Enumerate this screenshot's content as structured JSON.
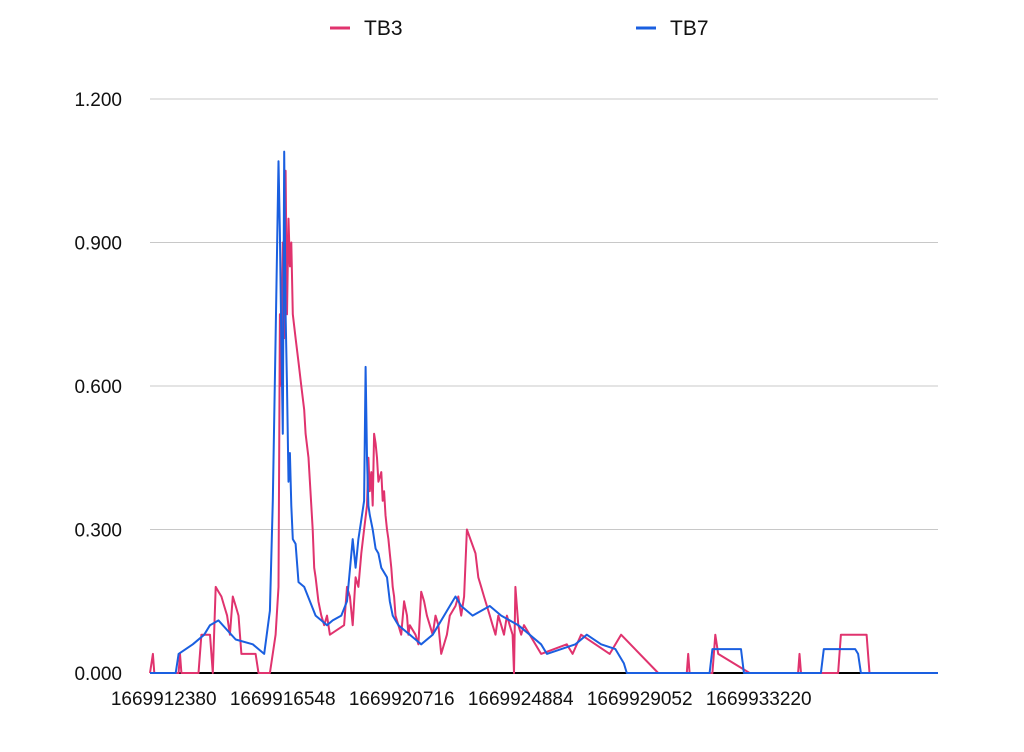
{
  "chart_data": {
    "type": "line",
    "title": "",
    "xlabel": "",
    "ylabel": "",
    "xlim": [
      1669911900,
      1669939500
    ],
    "ylim": [
      0,
      1.2
    ],
    "grid": true,
    "legend_position": "top",
    "y_ticks": [
      "0.000",
      "0.300",
      "0.600",
      "0.900",
      "1.200"
    ],
    "y_tick_values": [
      0,
      0.3,
      0.6,
      0.9,
      1.2
    ],
    "x_ticks": [
      "1669912380",
      "1669916548",
      "1669920716",
      "1669924884",
      "1669929052",
      "1669933220"
    ],
    "x_tick_values": [
      1669912380,
      1669916548,
      1669920716,
      1669924884,
      1669929052,
      1669933220
    ],
    "series": [
      {
        "name": "TB3",
        "color": "#e0336e",
        "points": [
          [
            1669911900,
            0.0
          ],
          [
            1669912000,
            0.04
          ],
          [
            1669912050,
            0.0
          ],
          [
            1669912900,
            0.0
          ],
          [
            1669912950,
            0.04
          ],
          [
            1669913000,
            0.0
          ],
          [
            1669913600,
            0.0
          ],
          [
            1669913700,
            0.08
          ],
          [
            1669914000,
            0.08
          ],
          [
            1669914100,
            0.0
          ],
          [
            1669914200,
            0.18
          ],
          [
            1669914300,
            0.17
          ],
          [
            1669914400,
            0.16
          ],
          [
            1669914500,
            0.14
          ],
          [
            1669914600,
            0.12
          ],
          [
            1669914700,
            0.08
          ],
          [
            1669914800,
            0.16
          ],
          [
            1669914900,
            0.14
          ],
          [
            1669915000,
            0.12
          ],
          [
            1669915100,
            0.04
          ],
          [
            1669915600,
            0.04
          ],
          [
            1669915700,
            0.0
          ],
          [
            1669916100,
            0.0
          ],
          [
            1669916300,
            0.08
          ],
          [
            1669916400,
            0.18
          ],
          [
            1669916450,
            0.75
          ],
          [
            1669916500,
            0.6
          ],
          [
            1669916550,
            0.9
          ],
          [
            1669916600,
            0.7
          ],
          [
            1669916650,
            1.05
          ],
          [
            1669916700,
            0.75
          ],
          [
            1669916750,
            0.95
          ],
          [
            1669916800,
            0.85
          ],
          [
            1669916850,
            0.9
          ],
          [
            1669916900,
            0.75
          ],
          [
            1669917000,
            0.7
          ],
          [
            1669917100,
            0.65
          ],
          [
            1669917200,
            0.6
          ],
          [
            1669917300,
            0.55
          ],
          [
            1669917350,
            0.5
          ],
          [
            1669917450,
            0.45
          ],
          [
            1669917500,
            0.4
          ],
          [
            1669917550,
            0.35
          ],
          [
            1669917600,
            0.3
          ],
          [
            1669917650,
            0.22
          ],
          [
            1669917700,
            0.2
          ],
          [
            1669917800,
            0.15
          ],
          [
            1669917900,
            0.12
          ],
          [
            1669918000,
            0.1
          ],
          [
            1669918100,
            0.12
          ],
          [
            1669918200,
            0.08
          ],
          [
            1669918700,
            0.1
          ],
          [
            1669918800,
            0.18
          ],
          [
            1669918900,
            0.16
          ],
          [
            1669919000,
            0.1
          ],
          [
            1669919100,
            0.2
          ],
          [
            1669919200,
            0.18
          ],
          [
            1669919300,
            0.25
          ],
          [
            1669919400,
            0.3
          ],
          [
            1669919500,
            0.35
          ],
          [
            1669919550,
            0.45
          ],
          [
            1669919600,
            0.38
          ],
          [
            1669919650,
            0.42
          ],
          [
            1669919700,
            0.35
          ],
          [
            1669919750,
            0.5
          ],
          [
            1669919800,
            0.48
          ],
          [
            1669919850,
            0.45
          ],
          [
            1669919900,
            0.4
          ],
          [
            1669920000,
            0.42
          ],
          [
            1669920050,
            0.36
          ],
          [
            1669920100,
            0.38
          ],
          [
            1669920150,
            0.33
          ],
          [
            1669920200,
            0.3
          ],
          [
            1669920250,
            0.28
          ],
          [
            1669920300,
            0.25
          ],
          [
            1669920350,
            0.22
          ],
          [
            1669920400,
            0.18
          ],
          [
            1669920450,
            0.16
          ],
          [
            1669920500,
            0.12
          ],
          [
            1669920600,
            0.1
          ],
          [
            1669920700,
            0.08
          ],
          [
            1669920800,
            0.15
          ],
          [
            1669920900,
            0.12
          ],
          [
            1669920950,
            0.08
          ],
          [
            1669921000,
            0.1
          ],
          [
            1669921200,
            0.08
          ],
          [
            1669921300,
            0.06
          ],
          [
            1669921400,
            0.17
          ],
          [
            1669921500,
            0.15
          ],
          [
            1669921600,
            0.12
          ],
          [
            1669921700,
            0.1
          ],
          [
            1669921800,
            0.08
          ],
          [
            1669921900,
            0.12
          ],
          [
            1669922000,
            0.1
          ],
          [
            1669922100,
            0.04
          ],
          [
            1669922300,
            0.08
          ],
          [
            1669922400,
            0.12
          ],
          [
            1669922600,
            0.14
          ],
          [
            1669922700,
            0.16
          ],
          [
            1669922800,
            0.12
          ],
          [
            1669922900,
            0.16
          ],
          [
            1669923000,
            0.3
          ],
          [
            1669923300,
            0.25
          ],
          [
            1669923400,
            0.2
          ],
          [
            1669923500,
            0.18
          ],
          [
            1669923600,
            0.16
          ],
          [
            1669923700,
            0.14
          ],
          [
            1669923800,
            0.12
          ],
          [
            1669923900,
            0.1
          ],
          [
            1669924000,
            0.08
          ],
          [
            1669924100,
            0.12
          ],
          [
            1669924200,
            0.1
          ],
          [
            1669924300,
            0.08
          ],
          [
            1669924400,
            0.12
          ],
          [
            1669924500,
            0.1
          ],
          [
            1669924600,
            0.08
          ],
          [
            1669924650,
            0.0
          ],
          [
            1669924700,
            0.18
          ],
          [
            1669924800,
            0.1
          ],
          [
            1669924900,
            0.08
          ],
          [
            1669925000,
            0.1
          ],
          [
            1669925200,
            0.08
          ],
          [
            1669925600,
            0.04
          ],
          [
            1669926500,
            0.06
          ],
          [
            1669926700,
            0.04
          ],
          [
            1669927000,
            0.08
          ],
          [
            1669928000,
            0.04
          ],
          [
            1669928400,
            0.08
          ],
          [
            1669929700,
            0.0
          ],
          [
            1669930700,
            0.0
          ],
          [
            1669930750,
            0.04
          ],
          [
            1669930800,
            0.0
          ],
          [
            1669931600,
            0.0
          ],
          [
            1669931700,
            0.08
          ],
          [
            1669931800,
            0.04
          ],
          [
            1669932900,
            0.0
          ],
          [
            1669934600,
            0.0
          ],
          [
            1669934650,
            0.04
          ],
          [
            1669934700,
            0.0
          ],
          [
            1669936000,
            0.0
          ],
          [
            1669936100,
            0.08
          ],
          [
            1669937000,
            0.08
          ],
          [
            1669937100,
            0.0
          ],
          [
            1669939500,
            0.0
          ]
        ]
      },
      {
        "name": "TB7",
        "color": "#1a5fe0",
        "points": [
          [
            1669911900,
            0.0
          ],
          [
            1669912800,
            0.0
          ],
          [
            1669912900,
            0.04
          ],
          [
            1669913400,
            0.06
          ],
          [
            1669913800,
            0.08
          ],
          [
            1669914000,
            0.1
          ],
          [
            1669914300,
            0.11
          ],
          [
            1669914600,
            0.09
          ],
          [
            1669914900,
            0.07
          ],
          [
            1669915500,
            0.06
          ],
          [
            1669915700,
            0.05
          ],
          [
            1669915900,
            0.04
          ],
          [
            1669916100,
            0.13
          ],
          [
            1669916200,
            0.36
          ],
          [
            1669916300,
            0.7
          ],
          [
            1669916400,
            1.07
          ],
          [
            1669916450,
            0.92
          ],
          [
            1669916500,
            0.7
          ],
          [
            1669916550,
            0.5
          ],
          [
            1669916600,
            1.09
          ],
          [
            1669916650,
            0.75
          ],
          [
            1669916700,
            0.6
          ],
          [
            1669916750,
            0.4
          ],
          [
            1669916800,
            0.46
          ],
          [
            1669916850,
            0.35
          ],
          [
            1669916900,
            0.28
          ],
          [
            1669917000,
            0.27
          ],
          [
            1669917100,
            0.19
          ],
          [
            1669917300,
            0.18
          ],
          [
            1669917500,
            0.15
          ],
          [
            1669917700,
            0.12
          ],
          [
            1669917900,
            0.11
          ],
          [
            1669918100,
            0.1
          ],
          [
            1669918300,
            0.11
          ],
          [
            1669918600,
            0.12
          ],
          [
            1669918800,
            0.15
          ],
          [
            1669919000,
            0.28
          ],
          [
            1669919100,
            0.22
          ],
          [
            1669919200,
            0.28
          ],
          [
            1669919300,
            0.32
          ],
          [
            1669919400,
            0.36
          ],
          [
            1669919450,
            0.64
          ],
          [
            1669919500,
            0.45
          ],
          [
            1669919550,
            0.35
          ],
          [
            1669919600,
            0.33
          ],
          [
            1669919700,
            0.3
          ],
          [
            1669919800,
            0.26
          ],
          [
            1669919900,
            0.25
          ],
          [
            1669920000,
            0.22
          ],
          [
            1669920200,
            0.2
          ],
          [
            1669920300,
            0.15
          ],
          [
            1669920400,
            0.12
          ],
          [
            1669920600,
            0.1
          ],
          [
            1669920800,
            0.09
          ],
          [
            1669921000,
            0.08
          ],
          [
            1669921200,
            0.07
          ],
          [
            1669921400,
            0.06
          ],
          [
            1669921800,
            0.08
          ],
          [
            1669922000,
            0.1
          ],
          [
            1669922200,
            0.12
          ],
          [
            1669922400,
            0.14
          ],
          [
            1669922600,
            0.16
          ],
          [
            1669922800,
            0.14
          ],
          [
            1669923200,
            0.12
          ],
          [
            1669923800,
            0.14
          ],
          [
            1669924200,
            0.12
          ],
          [
            1669924800,
            0.1
          ],
          [
            1669925200,
            0.08
          ],
          [
            1669925600,
            0.06
          ],
          [
            1669925800,
            0.04
          ],
          [
            1669926800,
            0.06
          ],
          [
            1669927200,
            0.08
          ],
          [
            1669927700,
            0.06
          ],
          [
            1669928200,
            0.05
          ],
          [
            1669928500,
            0.02
          ],
          [
            1669928600,
            0.0
          ],
          [
            1669931500,
            0.0
          ],
          [
            1669931600,
            0.05
          ],
          [
            1669932600,
            0.05
          ],
          [
            1669932700,
            0.0
          ],
          [
            1669935400,
            0.0
          ],
          [
            1669935500,
            0.05
          ],
          [
            1669936600,
            0.05
          ],
          [
            1669936700,
            0.04
          ],
          [
            1669936800,
            0.0
          ],
          [
            1669939500,
            0.0
          ]
        ]
      }
    ]
  }
}
